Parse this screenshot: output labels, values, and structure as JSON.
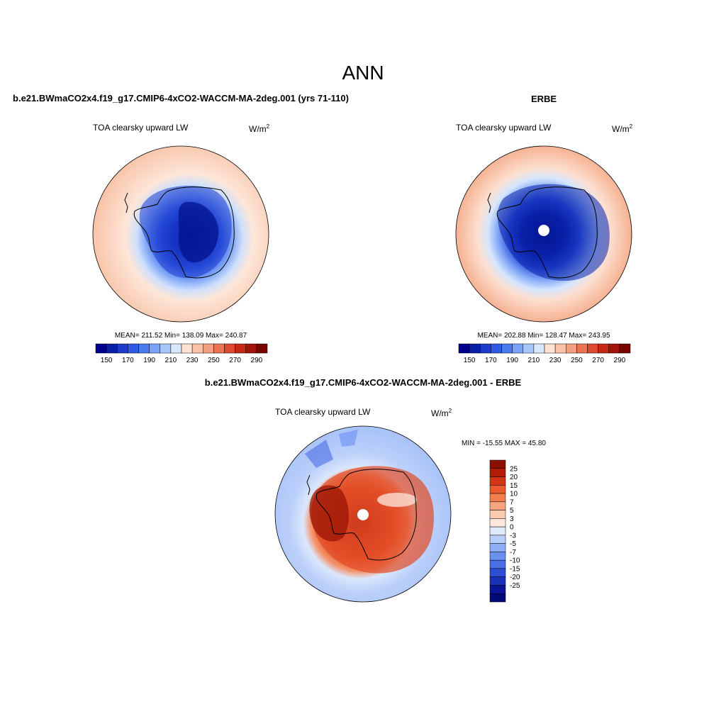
{
  "title": "ANN",
  "panels": {
    "model": {
      "case": "b.e21.BWmaCO2x4.f19_g17.CMIP6-4xCO2-WACCM-MA-2deg.001 (yrs 71-110)",
      "variable": "TOA clearsky upward LW",
      "units": "W/m",
      "units_sup": "2",
      "stats": "MEAN= 211.52  Min= 138.09  Max= 240.87"
    },
    "obs": {
      "case": "ERBE",
      "variable": "TOA clearsky upward LW",
      "units": "W/m",
      "units_sup": "2",
      "stats": "MEAN= 202.88  Min= 128.47  Max= 243.95"
    },
    "diff": {
      "case": "b.e21.BWmaCO2x4.f19_g17.CMIP6-4xCO2-WACCM-MA-2deg.001 - ERBE",
      "variable": "TOA clearsky upward LW",
      "units": "W/m",
      "units_sup": "2",
      "minmax": "MIN = -15.55 MAX =  45.80"
    }
  },
  "colorbars": {
    "abs": {
      "colors": [
        "#00008c",
        "#0a1ea8",
        "#1e3ccc",
        "#2e5ae6",
        "#4a7af0",
        "#7aa2f6",
        "#a8c6fa",
        "#d8e8fd",
        "#fde3d4",
        "#f9c3a8",
        "#f3a07e",
        "#ec7452",
        "#de4a2e",
        "#c42a16",
        "#a0140a",
        "#7a0500"
      ],
      "ticks": [
        "150",
        "170",
        "190",
        "210",
        "230",
        "250",
        "270",
        "290"
      ]
    },
    "diff": {
      "colors": [
        "#8c1000",
        "#b01c08",
        "#d23616",
        "#ea5a2c",
        "#f27e50",
        "#f6a47e",
        "#fbcbb0",
        "#fde8dc",
        "#dfeafc",
        "#b8cefa",
        "#8fb0f6",
        "#6a90f0",
        "#4a6ee4",
        "#2e4ed2",
        "#1a30b8",
        "#0a1696",
        "#000a74"
      ],
      "labels": [
        "25",
        "20",
        "15",
        "10",
        "7",
        "5",
        "3",
        "0",
        "-3",
        "-5",
        "-7",
        "-10",
        "-15",
        "-20",
        "-25"
      ]
    }
  },
  "map_colors": {
    "land_outline": "#000000",
    "model_ocean": "#f9c9b0",
    "obs_ocean": "#f6b59a",
    "diff_pos": "#e85030",
    "diff_neg": "#bcd2fa"
  }
}
